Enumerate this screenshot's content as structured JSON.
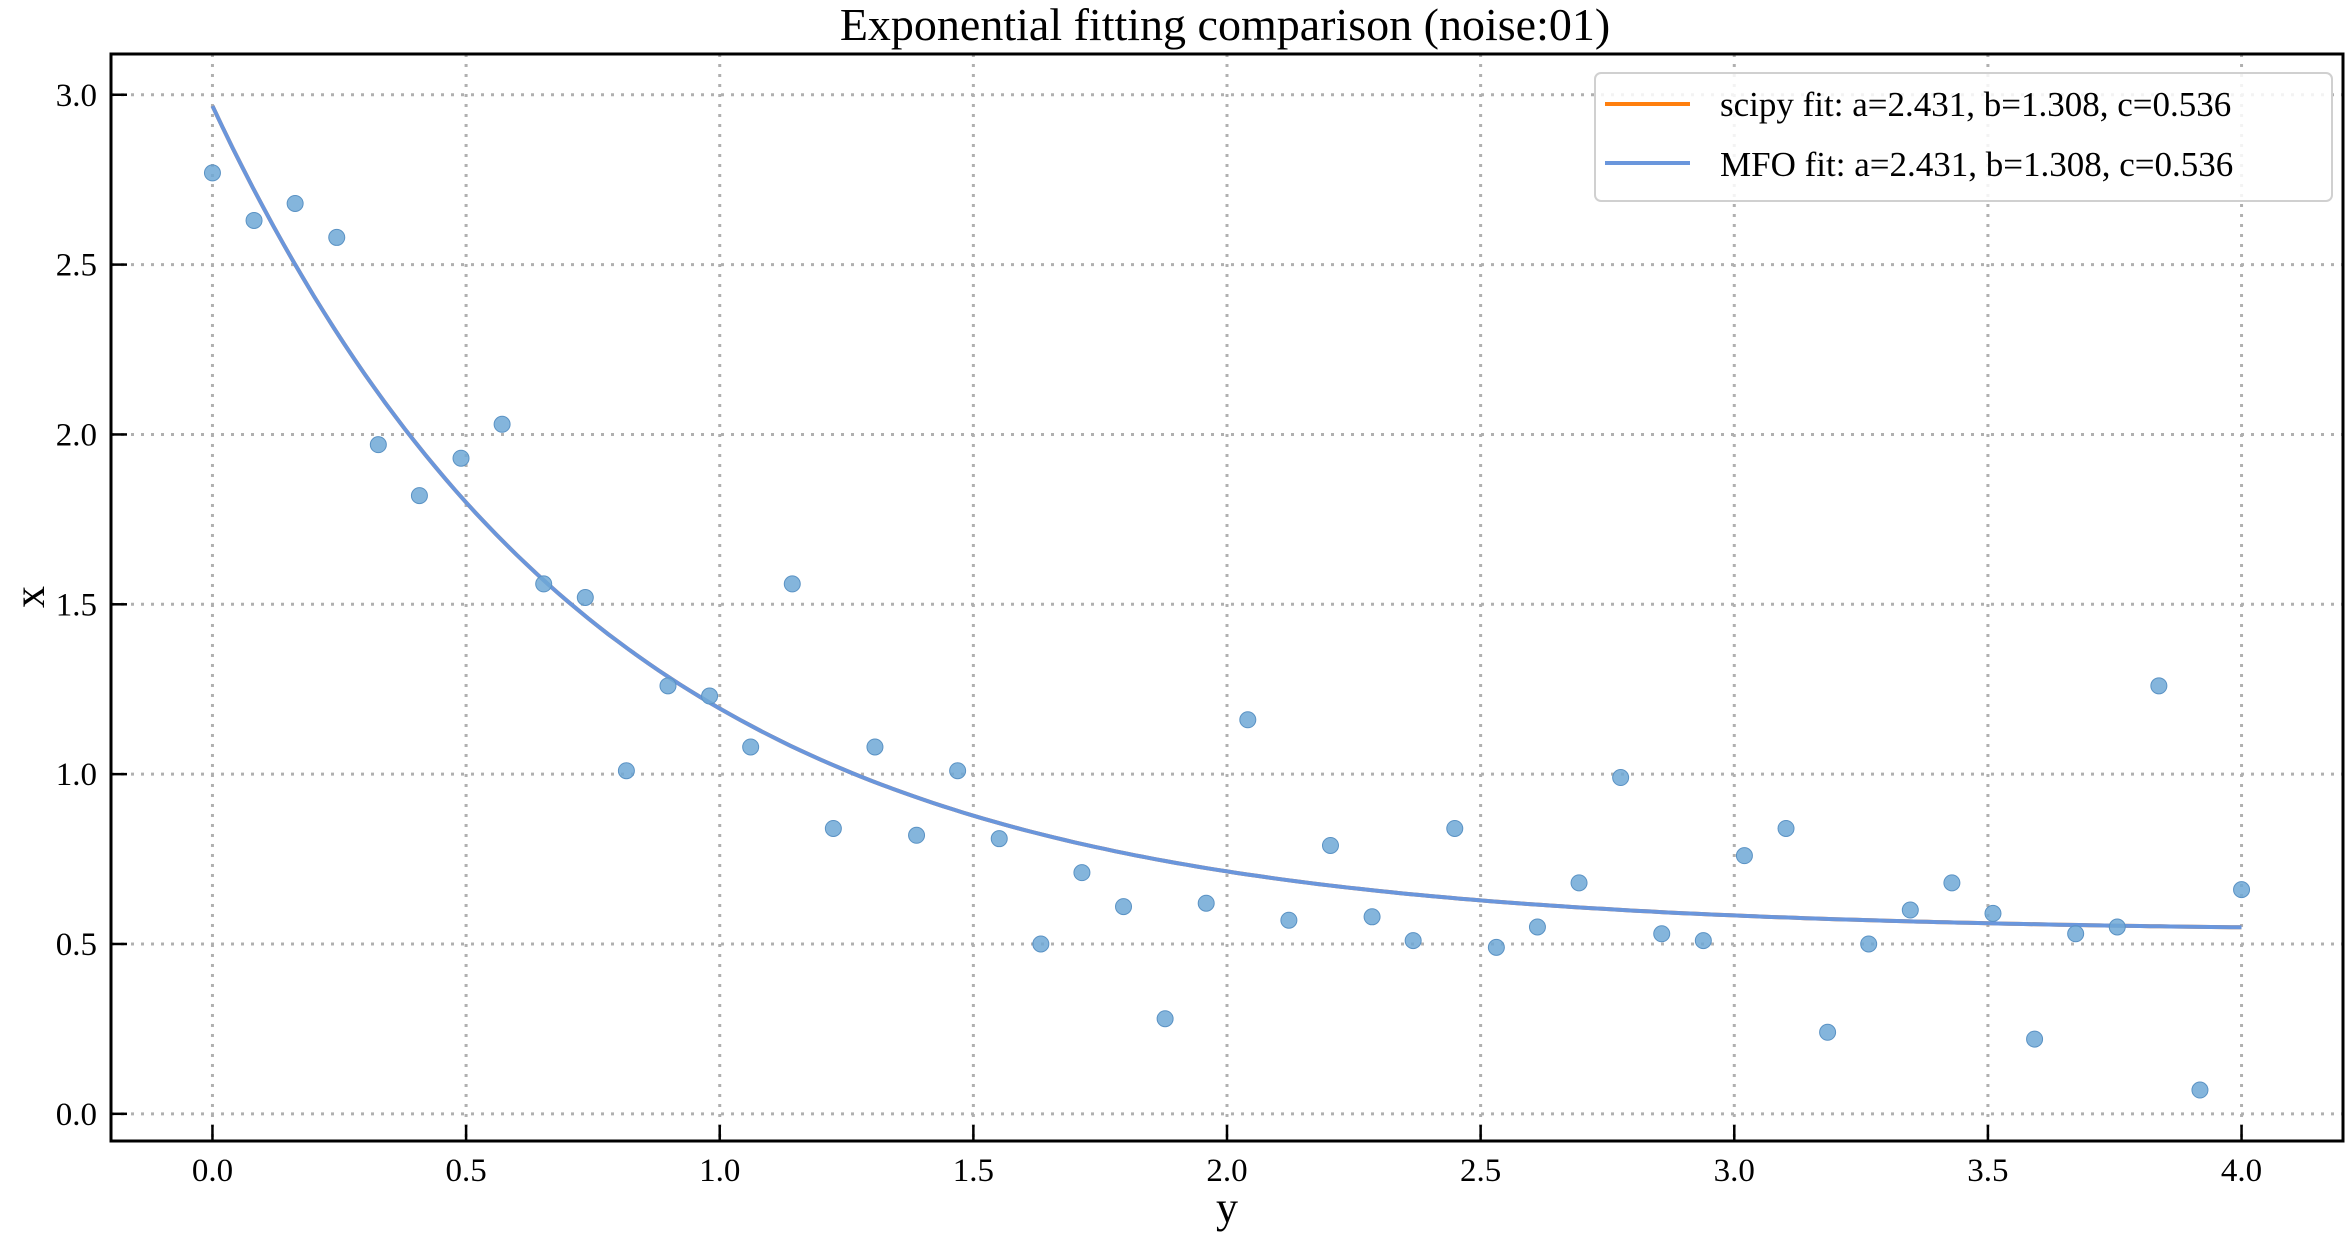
{
  "chart_data": {
    "type": "scatter",
    "title": "Exponential fitting comparison (noise:01)",
    "xlabel": "y",
    "ylabel": "x",
    "xlim": [
      -0.2,
      4.2
    ],
    "ylim": [
      -0.08,
      3.12
    ],
    "xticks": [
      0.0,
      0.5,
      1.0,
      1.5,
      2.0,
      2.5,
      3.0,
      3.5,
      4.0
    ],
    "xtick_labels": [
      "0.0",
      "0.5",
      "1.0",
      "1.5",
      "2.0",
      "2.5",
      "3.0",
      "3.5",
      "4.0"
    ],
    "yticks": [
      0.0,
      0.5,
      1.0,
      1.5,
      2.0,
      2.5,
      3.0
    ],
    "ytick_labels": [
      "0.0",
      "0.5",
      "1.0",
      "1.5",
      "2.0",
      "2.5",
      "3.0"
    ],
    "grid": true,
    "legend_position": "top-right",
    "scatter": {
      "color": "#6fa8d6",
      "x": [
        0.0,
        0.082,
        0.163,
        0.245,
        0.327,
        0.408,
        0.49,
        0.571,
        0.653,
        0.735,
        0.816,
        0.898,
        0.98,
        1.061,
        1.143,
        1.224,
        1.306,
        1.388,
        1.469,
        1.551,
        1.633,
        1.714,
        1.796,
        1.878,
        1.959,
        2.041,
        2.122,
        2.204,
        2.286,
        2.367,
        2.449,
        2.531,
        2.612,
        2.694,
        2.776,
        2.857,
        2.939,
        3.02,
        3.102,
        3.184,
        3.265,
        3.347,
        3.429,
        3.51,
        3.592,
        3.673,
        3.755,
        3.837,
        3.918,
        4.0
      ],
      "y": [
        2.77,
        2.63,
        2.68,
        2.58,
        1.97,
        1.82,
        1.93,
        2.03,
        1.56,
        1.52,
        1.01,
        1.26,
        1.23,
        1.08,
        1.56,
        0.84,
        1.08,
        0.82,
        1.01,
        0.81,
        0.5,
        0.71,
        0.61,
        0.28,
        0.62,
        1.16,
        0.57,
        0.79,
        0.58,
        0.51,
        0.84,
        0.49,
        0.55,
        0.68,
        0.99,
        0.53,
        0.51,
        0.76,
        0.84,
        0.24,
        0.5,
        0.6,
        0.68,
        0.59,
        0.22,
        0.53,
        0.55,
        1.26,
        0.07,
        0.66
      ]
    },
    "series": [
      {
        "name": "scipy fit: a=2.431, b=1.308, c=0.536",
        "color": "#ff7f0e",
        "a": 2.431,
        "b": 1.308,
        "c": 0.536
      },
      {
        "name": "MFO fit: a=2.431, b=1.308, c=0.536",
        "color": "#6a96dc",
        "a": 2.431,
        "b": 1.308,
        "c": 0.536
      }
    ]
  }
}
